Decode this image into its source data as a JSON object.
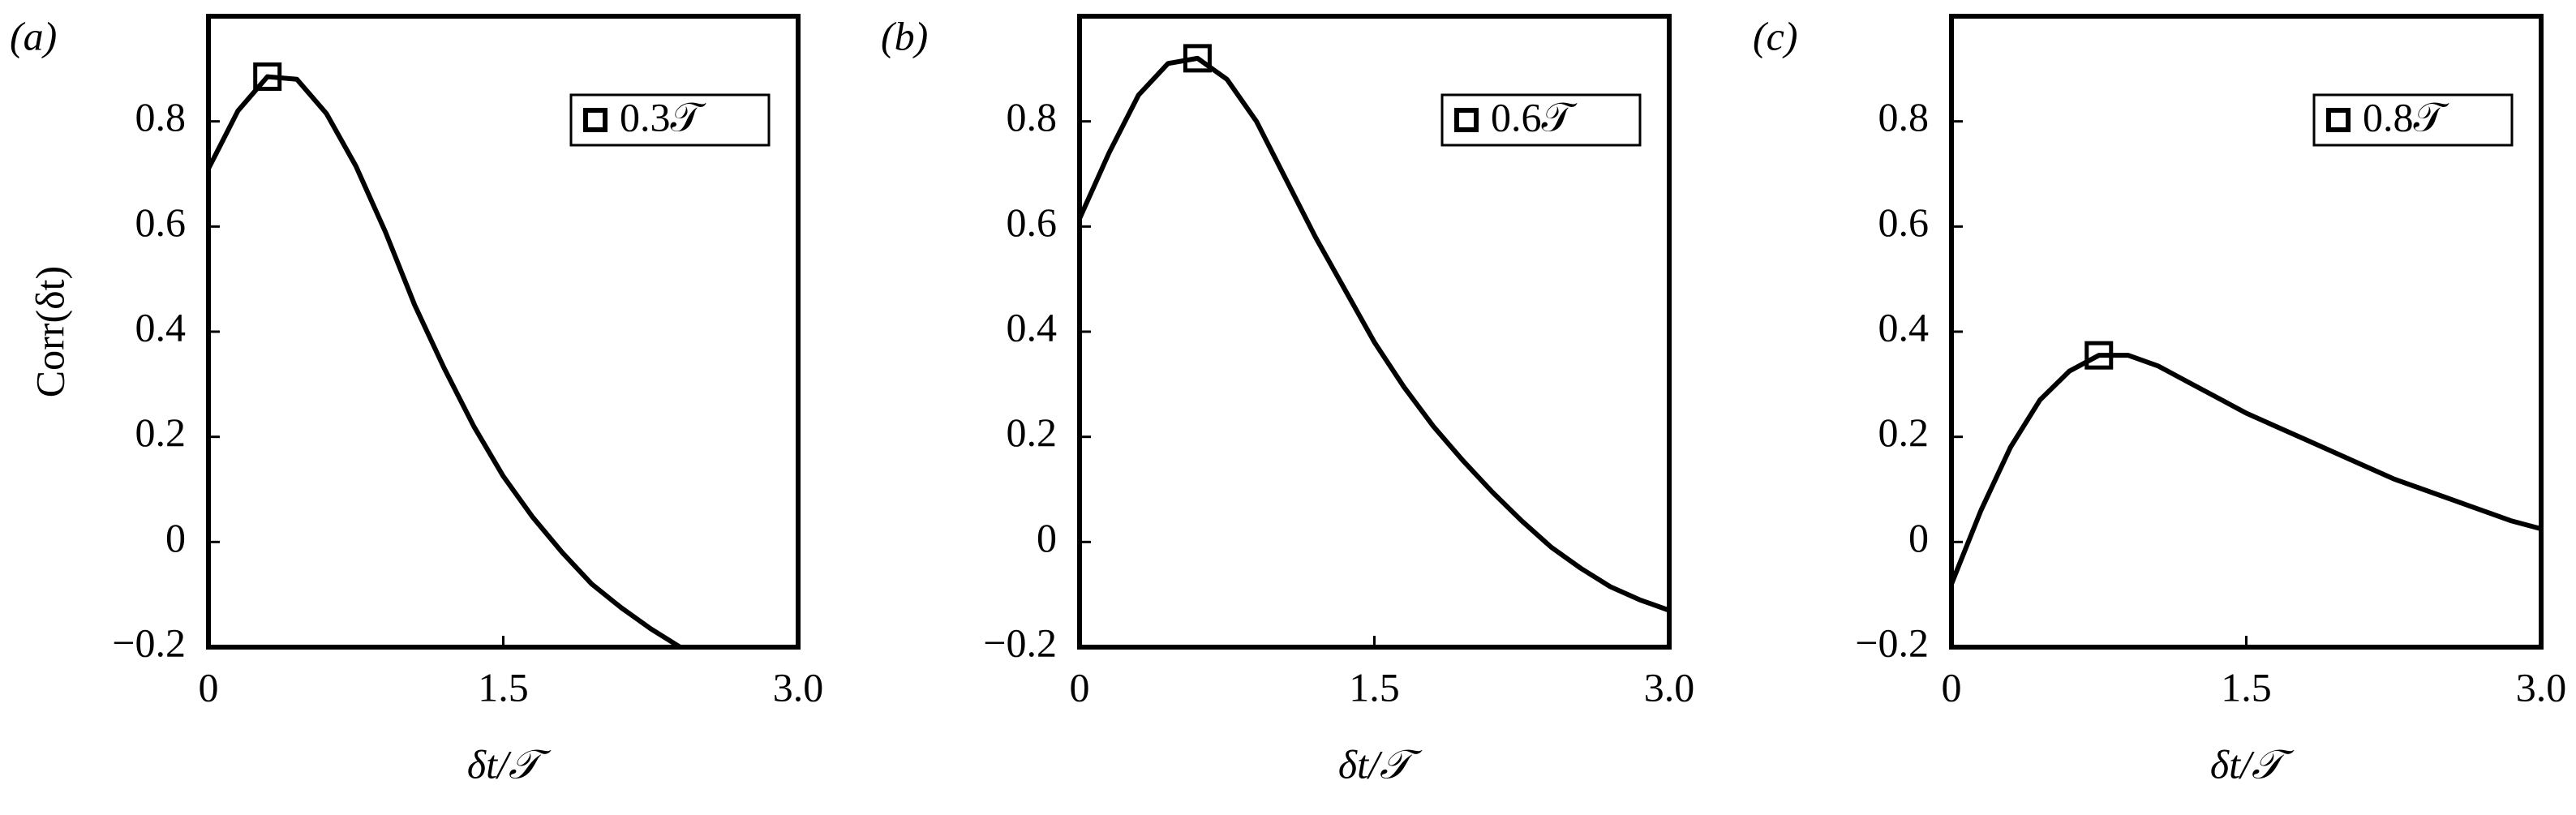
{
  "chart_data": [
    {
      "type": "line",
      "title": "(a)",
      "ylabel": "Corr(δt)",
      "xlabel": "δt/𝒯",
      "x": [
        0,
        0.15,
        0.3,
        0.45,
        0.6,
        0.75,
        0.9,
        1.05,
        1.2,
        1.35,
        1.5,
        1.65,
        1.8,
        1.95,
        2.1,
        2.25,
        2.4
      ],
      "series": [
        {
          "name": "0.3𝒯",
          "color": "#000000",
          "values": [
            0.71,
            0.82,
            0.885,
            0.88,
            0.815,
            0.715,
            0.59,
            0.45,
            0.33,
            0.22,
            0.125,
            0.047,
            -0.02,
            -0.08,
            -0.125,
            -0.165,
            -0.2
          ]
        }
      ],
      "highlight": {
        "x": 0.3,
        "y": 0.885
      },
      "xlim": [
        0,
        3.0
      ],
      "xticks": [
        0,
        1.5,
        {
          "value": 3.0,
          "label": "3.0"
        }
      ],
      "ylim": [
        -0.2,
        1.0
      ],
      "yticks": [
        {
          "value": -0.2,
          "label": "−0.2"
        },
        0,
        0.2,
        0.4,
        0.6,
        0.8
      ]
    },
    {
      "type": "line",
      "title": "(b)",
      "xlabel": "δt/𝒯",
      "x": [
        0,
        0.15,
        0.3,
        0.45,
        0.6,
        0.75,
        0.9,
        1.05,
        1.2,
        1.35,
        1.5,
        1.65,
        1.8,
        1.95,
        2.1,
        2.25,
        2.4,
        2.55,
        2.7,
        2.85,
        3.0
      ],
      "series": [
        {
          "name": "0.6𝒯",
          "color": "#000000",
          "values": [
            0.615,
            0.74,
            0.85,
            0.91,
            0.92,
            0.88,
            0.8,
            0.69,
            0.58,
            0.48,
            0.38,
            0.295,
            0.22,
            0.155,
            0.095,
            0.04,
            -0.01,
            -0.05,
            -0.085,
            -0.11,
            -0.13
          ]
        }
      ],
      "highlight": {
        "x": 0.6,
        "y": 0.92
      },
      "xlim": [
        0,
        3.0
      ],
      "xticks": [
        0,
        1.5,
        {
          "value": 3.0,
          "label": "3.0"
        }
      ],
      "ylim": [
        -0.2,
        1.0
      ],
      "yticks": [
        {
          "value": -0.2,
          "label": "−0.2"
        },
        0,
        0.2,
        0.4,
        0.6,
        0.8
      ]
    },
    {
      "type": "line",
      "title": "(c)",
      "xlabel": "δt/𝒯",
      "x": [
        0,
        0.15,
        0.3,
        0.45,
        0.6,
        0.75,
        0.9,
        1.05,
        1.2,
        1.35,
        1.5,
        1.65,
        1.8,
        1.95,
        2.1,
        2.25,
        2.4,
        2.55,
        2.7,
        2.85,
        3.0
      ],
      "series": [
        {
          "name": "0.8𝒯",
          "color": "#000000",
          "values": [
            -0.08,
            0.06,
            0.18,
            0.27,
            0.325,
            0.355,
            0.355,
            0.335,
            0.305,
            0.275,
            0.245,
            0.22,
            0.195,
            0.17,
            0.145,
            0.12,
            0.1,
            0.08,
            0.06,
            0.04,
            0.025
          ]
        }
      ],
      "highlight": {
        "x": 0.75,
        "y": 0.355
      },
      "xlim": [
        0,
        3.0
      ],
      "xticks": [
        0,
        1.5,
        {
          "value": 3.0,
          "label": "3.0"
        }
      ],
      "ylim": [
        -0.2,
        1.0
      ],
      "yticks": [
        {
          "value": -0.2,
          "label": "−0.2"
        },
        0,
        0.2,
        0.4,
        0.6,
        0.8
      ]
    }
  ]
}
